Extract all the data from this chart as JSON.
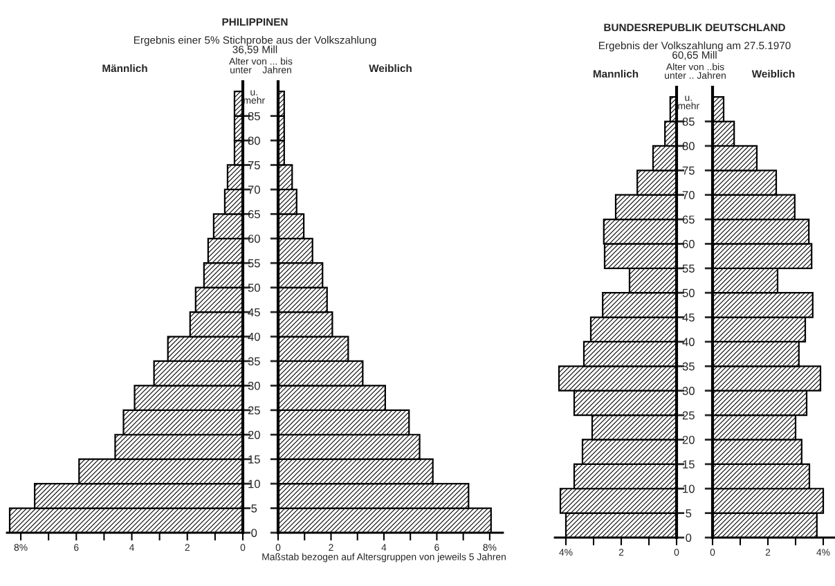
{
  "chart_data": [
    {
      "type": "histogram",
      "orientation": "horizontal",
      "title": "PHILIPPINEN",
      "subtitle": "Ergebnis einer 5% Stichprobe aus der Volkszahlung\n36,59 Mill",
      "bins": [
        0,
        5,
        10,
        15,
        20,
        25,
        30,
        35,
        40,
        45,
        50,
        55,
        60,
        65,
        70,
        75,
        80,
        85,
        90
      ],
      "series": [
        {
          "name": "Männlich",
          "color": "#000000",
          "values": [
            8.4,
            7.5,
            5.9,
            4.6,
            4.3,
            3.9,
            3.2,
            2.7,
            1.9,
            1.7,
            1.4,
            1.25,
            1.05,
            0.65,
            0.55,
            0.3,
            0.3,
            0.3
          ]
        }
      ],
      "xlim": [
        8.5,
        0
      ],
      "xticks": [
        {
          "value": 8,
          "label": "8%"
        },
        {
          "value": 7,
          "label": null
        },
        6,
        {
          "value": 5,
          "label": null
        },
        4,
        {
          "value": 3,
          "label": null
        },
        2,
        {
          "value": 1,
          "label": null
        },
        0
      ],
      "ylim": [
        0,
        92
      ],
      "yticks": [
        0,
        5,
        10,
        15,
        20,
        25,
        30,
        35,
        40,
        45,
        50,
        55,
        60,
        65,
        70,
        75,
        80,
        85
      ],
      "tick_labels": "x"
    },
    {
      "type": "histogram",
      "orientation": "horizontal",
      "ylabel": "Alter von ... bis\nunter    Jahren",
      "bins": [
        0,
        5,
        10,
        15,
        20,
        25,
        30,
        35,
        40,
        45,
        50,
        55,
        60,
        65,
        70,
        75,
        80,
        85,
        90
      ],
      "series": [
        {
          "name": "Weiblich",
          "color": "#000000",
          "values": [
            8.05,
            7.2,
            5.85,
            5.35,
            4.95,
            4.05,
            3.2,
            2.65,
            2.05,
            1.85,
            1.68,
            1.3,
            0.97,
            0.7,
            0.53,
            0.23,
            0.23,
            0.23
          ]
        }
      ],
      "xlim": [
        0,
        8.5
      ],
      "xticks": [
        0,
        {
          "value": 1,
          "label": null
        },
        2,
        {
          "value": 3,
          "label": null
        },
        4,
        {
          "value": 5,
          "label": null
        },
        6,
        {
          "value": 7,
          "label": null
        },
        {
          "value": 8,
          "label": "8%"
        }
      ],
      "ylim": [
        0,
        92
      ],
      "yticks": [
        0,
        5,
        10,
        15,
        20,
        25,
        30,
        35,
        40,
        45,
        50,
        55,
        60,
        65,
        70,
        75,
        80,
        85,
        {
          "value": 89,
          "label": "u.\nmehr"
        }
      ],
      "annotations": [
        "Maßstab bezogen auf Altersgruppen von jeweils 5 Jahren"
      ]
    },
    {
      "type": "histogram",
      "orientation": "horizontal",
      "title": "BUNDESREPUBLIK DEUTSCHLAND",
      "subtitle": "Ergebnis der Volkszahlung am 27.5.1970\n60,65 Mill",
      "bins": [
        0,
        5,
        10,
        15,
        20,
        25,
        30,
        35,
        40,
        45,
        50,
        55,
        60,
        65,
        70,
        75,
        80,
        85,
        90
      ],
      "series": [
        {
          "name": "Mannlich",
          "color": "#000000",
          "values": [
            4.0,
            4.2,
            3.7,
            3.4,
            3.05,
            3.7,
            4.25,
            3.35,
            3.1,
            2.67,
            1.7,
            2.6,
            2.63,
            2.2,
            1.42,
            0.85,
            0.42,
            0.23
          ]
        }
      ],
      "xlim": [
        4.4,
        0
      ],
      "xticks": [
        {
          "value": 4,
          "label": "4%"
        },
        {
          "value": 3,
          "label": null
        },
        2,
        {
          "value": 1,
          "label": null
        },
        0
      ],
      "ylim": [
        0,
        92
      ],
      "yticks": [
        0,
        5,
        10,
        15,
        20,
        25,
        30,
        35,
        40,
        45,
        50,
        55,
        60,
        65,
        70,
        75,
        80,
        85
      ],
      "tick_labels": "x"
    },
    {
      "type": "histogram",
      "orientation": "horizontal",
      "ylabel": "Alter von ..bis\nunter .. Jahren",
      "bins": [
        0,
        5,
        10,
        15,
        20,
        25,
        30,
        35,
        40,
        45,
        50,
        55,
        60,
        65,
        70,
        75,
        80,
        85,
        90
      ],
      "series": [
        {
          "name": "Weiblich",
          "color": "#000000",
          "values": [
            3.77,
            4.0,
            3.5,
            3.22,
            3.0,
            3.4,
            3.9,
            3.12,
            3.35,
            3.62,
            2.35,
            3.58,
            3.48,
            2.97,
            2.3,
            1.6,
            0.78,
            0.4
          ]
        }
      ],
      "xlim": [
        0,
        4.4
      ],
      "xticks": [
        0,
        {
          "value": 1,
          "label": null
        },
        2,
        {
          "value": 3,
          "label": null
        },
        {
          "value": 4,
          "label": "4%"
        }
      ],
      "ylim": [
        0,
        92
      ],
      "yticks": [
        0,
        5,
        10,
        15,
        20,
        25,
        30,
        35,
        40,
        45,
        50,
        55,
        60,
        65,
        70,
        75,
        80,
        85,
        {
          "value": 89,
          "label": "u.\nmehr"
        }
      ]
    }
  ]
}
